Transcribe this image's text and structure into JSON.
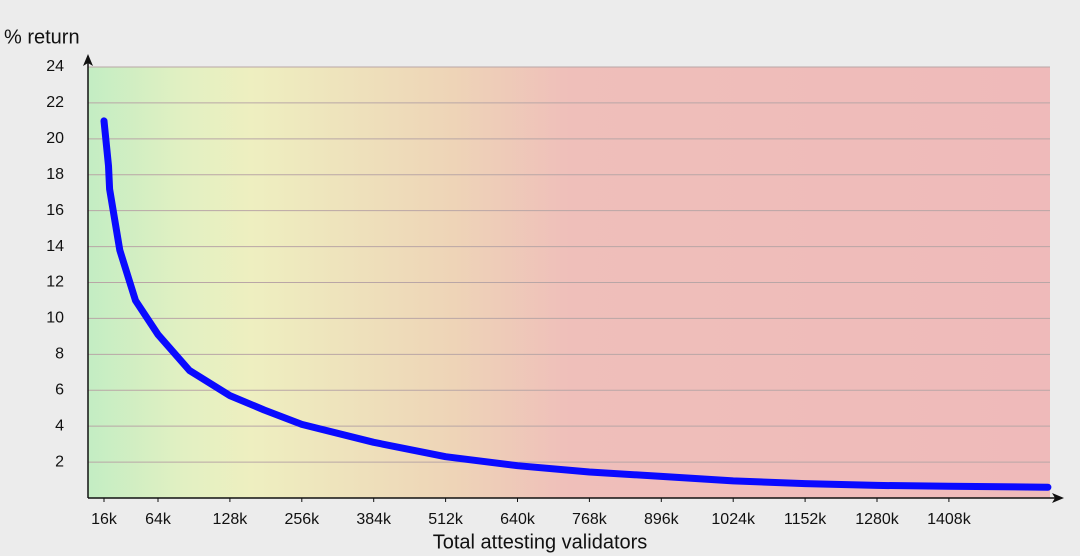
{
  "chart_data": {
    "type": "line",
    "x_label": "Total attesting validators",
    "y_label": "% return",
    "xlim": [
      0,
      1600000
    ],
    "xticks": [
      {
        "value": 16000,
        "label": "16k"
      },
      {
        "value": 64000,
        "label": "64k"
      },
      {
        "value": 128000,
        "label": "128k"
      },
      {
        "value": 256000,
        "label": "256k"
      },
      {
        "value": 384000,
        "label": "384k"
      },
      {
        "value": 512000,
        "label": "512k"
      },
      {
        "value": 640000,
        "label": "640k"
      },
      {
        "value": 768000,
        "label": "768k"
      },
      {
        "value": 896000,
        "label": "896k"
      },
      {
        "value": 1024000,
        "label": "1024k"
      },
      {
        "value": 1152000,
        "label": "1152k"
      },
      {
        "value": 1280000,
        "label": "1280k"
      },
      {
        "value": 1408000,
        "label": "1408k"
      }
    ],
    "ylim": [
      0,
      24
    ],
    "yticks": [
      2,
      4,
      6,
      8,
      10,
      12,
      14,
      16,
      18,
      20,
      22,
      24
    ],
    "grid": true,
    "x": [
      16000,
      20000,
      21000,
      30000,
      44000,
      64000,
      92000,
      128000,
      189000,
      256000,
      384000,
      512000,
      640000,
      768000,
      896000,
      1024000,
      1152000,
      1280000,
      1408000,
      1596000
    ],
    "series": [
      {
        "color": "#0a0aff",
        "values": [
          21,
          18.5,
          17.2,
          13.8,
          11.0,
          9.1,
          7.1,
          5.7,
          4.9,
          4.1,
          3.1,
          2.3,
          1.8,
          1.45,
          1.2,
          0.95,
          0.8,
          0.7,
          0.65,
          0.6
        ]
      }
    ]
  }
}
